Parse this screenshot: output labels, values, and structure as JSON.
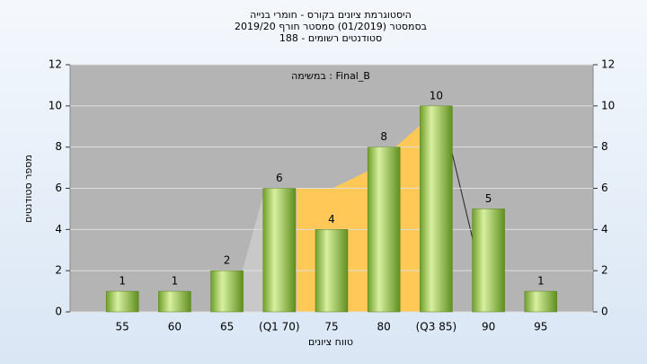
{
  "chart_data": {
    "type": "bar",
    "title": [
      "היסטוגרמת ציונים בקורס - חומרי בנייה",
      "בסמסטר (01/2019)  סמסטר חורף 2019/20",
      "סטודנטים רשומים - 188"
    ],
    "annotation": "במשימה : Final_B",
    "xlabel": "טווח ציונים",
    "ylabel": "מספר סטודנטים",
    "categories": [
      "55",
      "60",
      "65",
      "(Q1 70)",
      "75",
      "80",
      "(Q3 85)",
      "90",
      "95"
    ],
    "values": [
      1,
      1,
      2,
      6,
      4,
      8,
      10,
      5,
      1
    ],
    "color": "#8cbf3a",
    "ylim": [
      0,
      12
    ],
    "yticks": [
      0,
      2,
      4,
      6,
      8,
      10,
      12
    ],
    "grid": true
  }
}
